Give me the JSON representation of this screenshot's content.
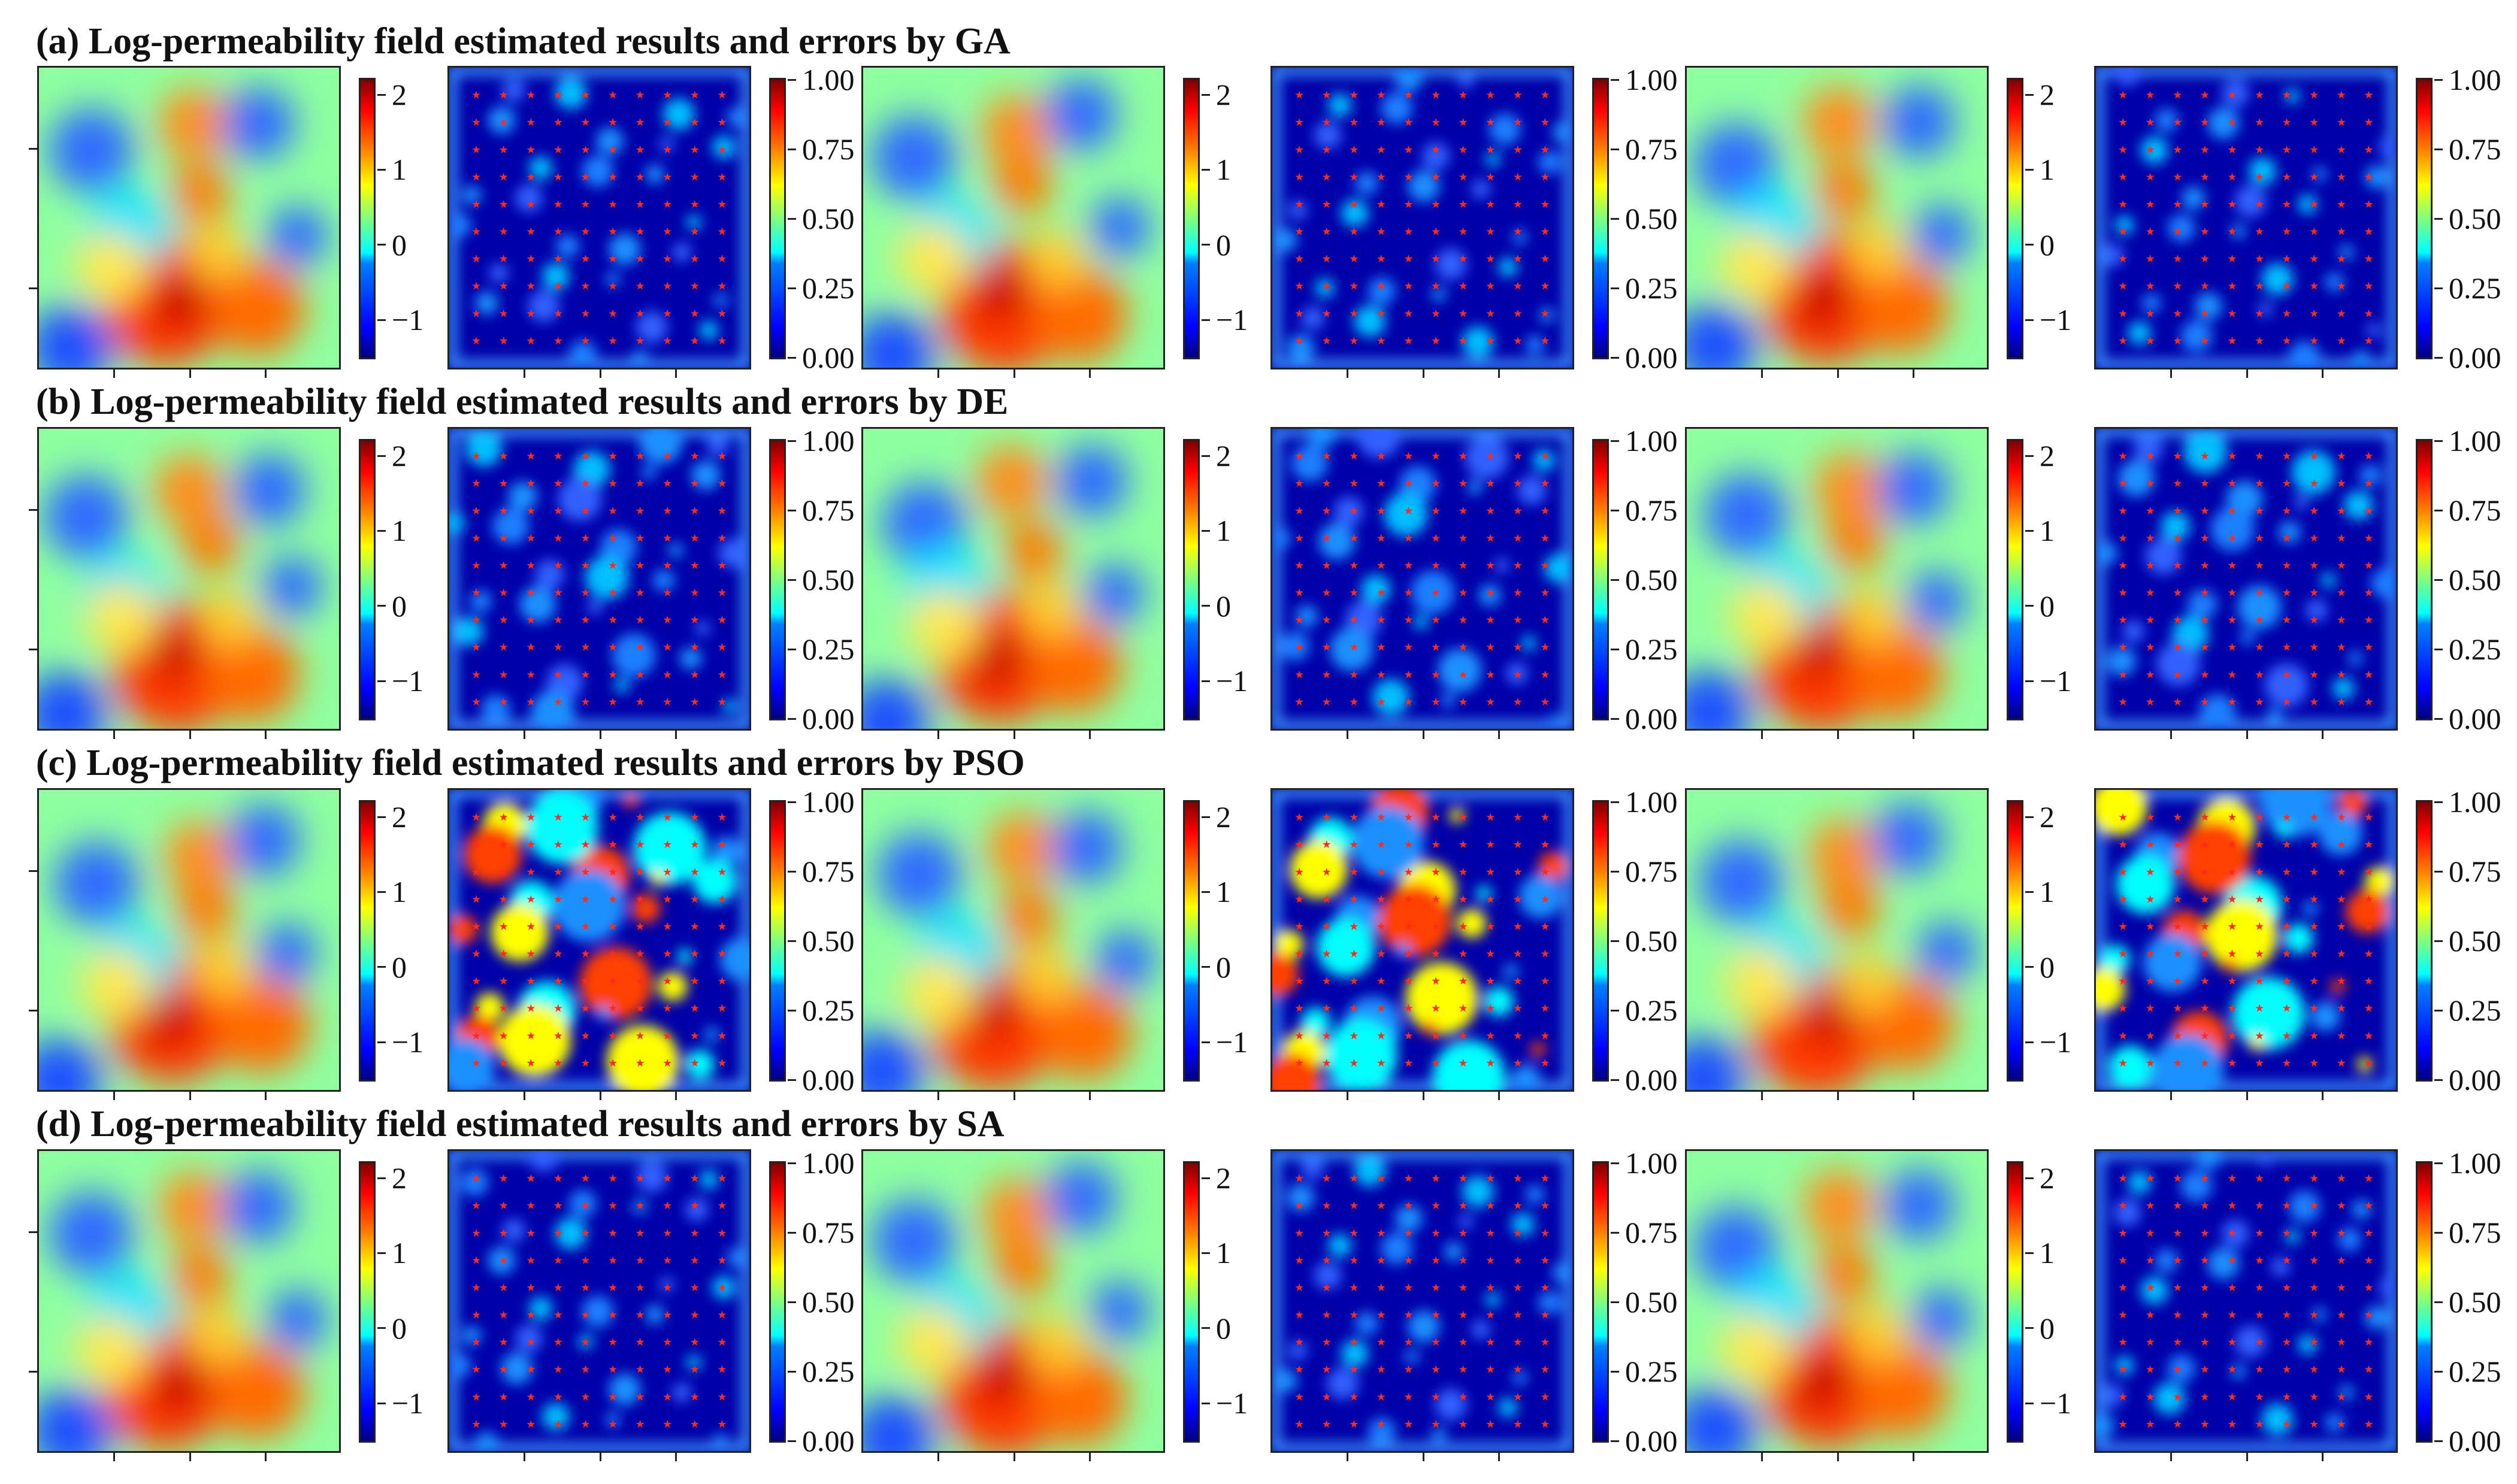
{
  "figure": {
    "rows": [
      {
        "title": "(a) Log-permeability field estimated results and errors by GA",
        "method": "GA"
      },
      {
        "title": "(b) Log-permeability field estimated results and errors by DE",
        "method": "DE"
      },
      {
        "title": "(c) Log-permeability field estimated results and errors by PSO",
        "method": "PSO"
      },
      {
        "title": "(d) Log-permeability field estimated results and errors by SA",
        "method": "SA"
      }
    ],
    "field_colorbar": {
      "min": -1.5,
      "max": 2.2,
      "ticks": [
        -1,
        0,
        1,
        2
      ],
      "labels": [
        "−1",
        "0",
        "1",
        "2"
      ]
    },
    "error_colorbar": {
      "min": 0,
      "max": 1,
      "ticks": [
        0,
        0.25,
        0.5,
        0.75,
        1
      ],
      "labels": [
        "0.00",
        "0.25",
        "0.50",
        "0.75",
        "1.00"
      ]
    },
    "colors": {
      "jet_low": "#00007f",
      "jet_high": "#7f0000",
      "marker": "#ff2a1a",
      "frame": "#222222"
    }
  },
  "chart_data": {
    "type": "heatmap",
    "colormap": "jet",
    "layout": "4 rows x 3 pairs (estimated field + error map with observation markers)",
    "grid": false,
    "panels_per_row": [
      "field",
      "error",
      "field",
      "error",
      "field",
      "error"
    ],
    "observation_markers": {
      "shape": "star",
      "color": "red",
      "grid": "10x10"
    }
  }
}
